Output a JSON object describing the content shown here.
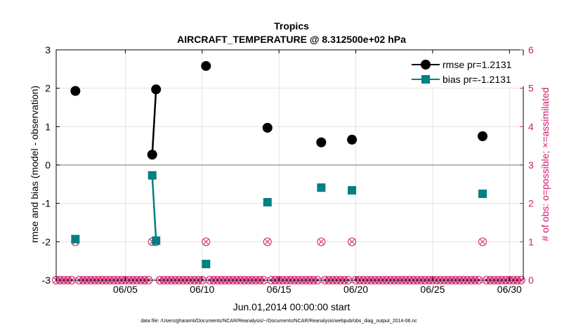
{
  "chart_data": {
    "type": "line",
    "title": "Tropics",
    "subtitle": "AIRCRAFT_TEMPERATURE @ 8.312500e+02 hPa",
    "xlabel": "Jun.01,2014 00:00:00 start",
    "ylabel_left": "rmse and bias (model - observation)",
    "ylabel_right": "# of obs: o=possible; ×=assimilated",
    "footnote": "data file: /Users/gharamti/Documents/NCAR/Reanalysis/~/Documents/NCAR/Reanalysis/webpub/obs_diag_output_2014-06.nc",
    "xlim": [
      0.5,
      30.9
    ],
    "ylim_left": [
      -3,
      3
    ],
    "ylim_right": [
      0,
      6
    ],
    "x_ticks": [
      {
        "value": 5,
        "label": "06/05"
      },
      {
        "value": 10,
        "label": "06/10"
      },
      {
        "value": 15,
        "label": "06/15"
      },
      {
        "value": 20,
        "label": "06/20"
      },
      {
        "value": 25,
        "label": "06/25"
      },
      {
        "value": 30,
        "label": "06/30"
      }
    ],
    "y_ticks_left": [
      {
        "value": -3,
        "label": "-3"
      },
      {
        "value": -2,
        "label": "-2"
      },
      {
        "value": -1,
        "label": "-1"
      },
      {
        "value": 0,
        "label": "0"
      },
      {
        "value": 1,
        "label": "1"
      },
      {
        "value": 2,
        "label": "2"
      },
      {
        "value": 3,
        "label": "3"
      }
    ],
    "y_ticks_right": [
      {
        "value": 0,
        "label": "0"
      },
      {
        "value": 1,
        "label": "1"
      },
      {
        "value": 2,
        "label": "2"
      },
      {
        "value": 3,
        "label": "3"
      },
      {
        "value": 4,
        "label": "4"
      },
      {
        "value": 5,
        "label": "5"
      },
      {
        "value": 6,
        "label": "6"
      }
    ],
    "series": [
      {
        "name": "rmse pr=1.2131",
        "color": "#000000",
        "marker": "circle",
        "points": [
          [
            1.75,
            1.93
          ],
          [
            6.75,
            0.27
          ],
          [
            7.0,
            1.97
          ],
          [
            10.25,
            2.58
          ],
          [
            14.25,
            0.97
          ],
          [
            17.75,
            0.59
          ],
          [
            19.75,
            0.66
          ],
          [
            28.25,
            0.75
          ]
        ],
        "segments": [
          [
            6.75,
            0.27,
            7.0,
            1.97
          ]
        ]
      },
      {
        "name": "bias pr=-1.2131",
        "color": "#008080",
        "marker": "square",
        "points": [
          [
            1.75,
            -1.93
          ],
          [
            6.75,
            -0.27
          ],
          [
            7.0,
            -1.97
          ],
          [
            10.25,
            -2.58
          ],
          [
            14.25,
            -0.97
          ],
          [
            17.75,
            -0.59
          ],
          [
            19.75,
            -0.66
          ],
          [
            28.25,
            -0.75
          ]
        ],
        "segments": [
          [
            6.75,
            -0.27,
            7.0,
            -1.97
          ]
        ]
      }
    ],
    "obs_counts": {
      "color": "#d01c6a",
      "x_start": 0.5,
      "x_end": 30.75,
      "x_step": 0.25,
      "one_obs_x": [
        1.75,
        6.75,
        7.0,
        10.25,
        14.25,
        17.75,
        19.75,
        28.25
      ]
    },
    "zero_line_color": "#a0a0a0"
  }
}
